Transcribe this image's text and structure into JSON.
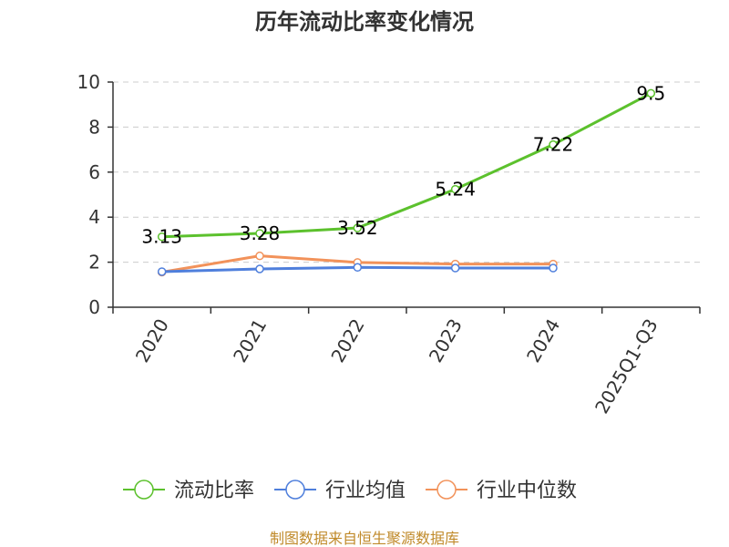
{
  "chart_data": {
    "type": "line",
    "title": "历年流动比率变化情况",
    "categories": [
      "2020",
      "2021",
      "2022",
      "2023",
      "2024",
      "2025Q1-Q3"
    ],
    "ylim": [
      0,
      10
    ],
    "yticks": [
      0,
      2,
      4,
      6,
      8,
      10
    ],
    "grid": true,
    "legend_position": "bottom-center",
    "series": [
      {
        "name": "流动比率",
        "color": "#5cc12d",
        "values": [
          3.13,
          3.28,
          3.52,
          5.24,
          7.22,
          9.5
        ],
        "labels": [
          "3.13",
          "3.28",
          "3.52",
          "5.24",
          "7.22",
          "9.5"
        ]
      },
      {
        "name": "行业均值",
        "color": "#4f7fdc",
        "values": [
          1.58,
          1.7,
          1.77,
          1.74,
          1.74,
          null
        ]
      },
      {
        "name": "行业中位数",
        "color": "#f2925a",
        "values": [
          1.56,
          2.28,
          1.99,
          1.92,
          1.92,
          null
        ]
      }
    ]
  },
  "source": "制图数据来自恒生聚源数据库"
}
